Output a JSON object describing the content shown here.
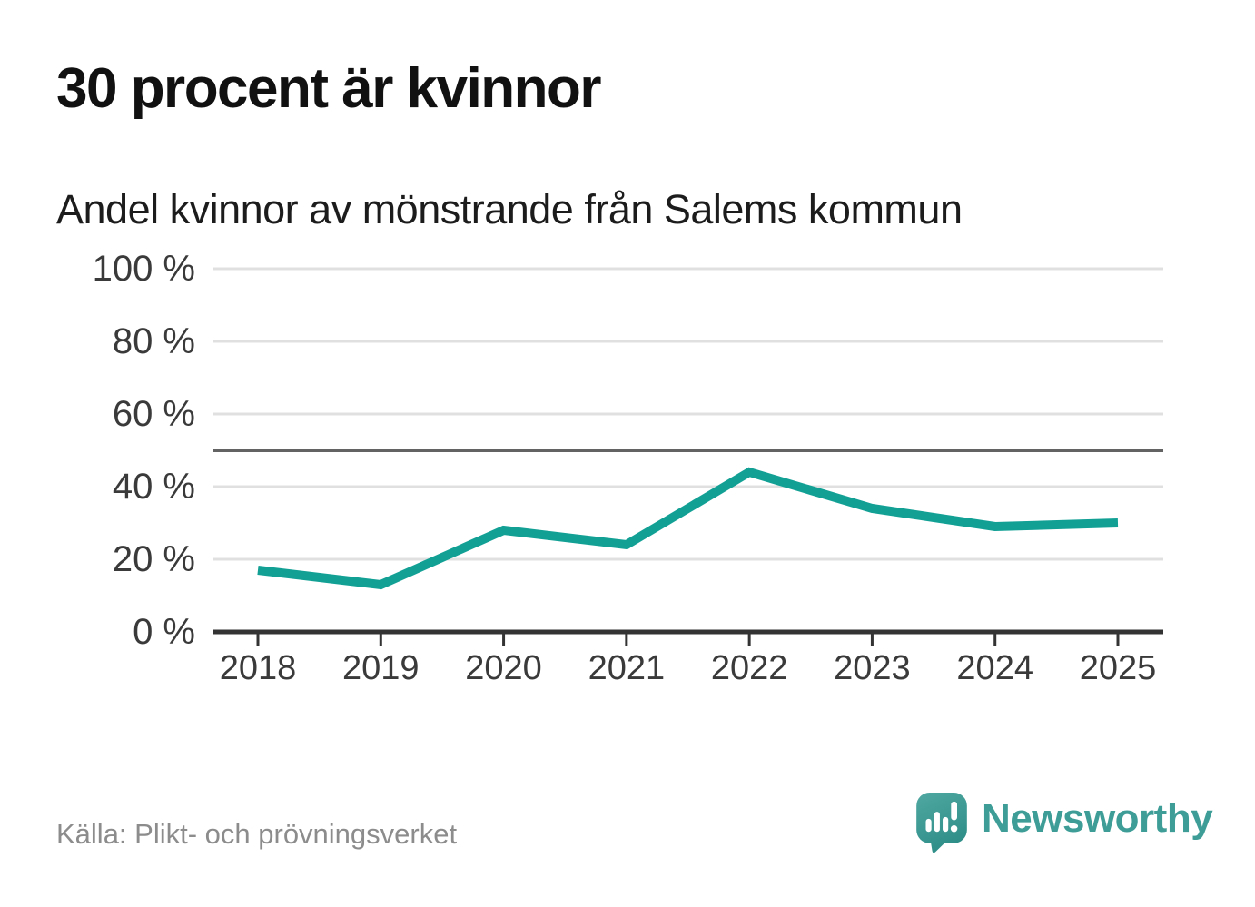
{
  "header": {
    "title": "30 procent är kvinnor",
    "subtitle": "Andel kvinnor av mönstrande från Salems kommun"
  },
  "chart_data": {
    "type": "line",
    "title": "30 procent är kvinnor",
    "subtitle": "Andel kvinnor av mönstrande från Salems kommun",
    "categories": [
      2018,
      2019,
      2020,
      2021,
      2022,
      2023,
      2024,
      2025
    ],
    "series": [
      {
        "name": "Andel kvinnor av mönstrande",
        "values": [
          17,
          13,
          28,
          24,
          44,
          34,
          29,
          30
        ]
      }
    ],
    "unit": "%",
    "ylim": [
      0,
      100
    ],
    "yticks": [
      0,
      20,
      40,
      60,
      80,
      100
    ],
    "ytick_suffix": " %",
    "reference_line": 50,
    "grid": "horizontal",
    "legend": "none"
  },
  "footer": {
    "source": "Källa: Plikt- och prövningsverket",
    "logo_text": "Newsworthy"
  },
  "colors": {
    "line": "#12a095",
    "reference_line": "#636363",
    "gridline": "#e0e0e0",
    "axis": "#333333",
    "tick_label": "#3a3a3a",
    "title_text": "#111111",
    "source_text": "#8c8c8c",
    "logo_teal": "#47a29c",
    "logo_teal_dark": "#2f8e88",
    "logo_text": "#3e9d97"
  }
}
